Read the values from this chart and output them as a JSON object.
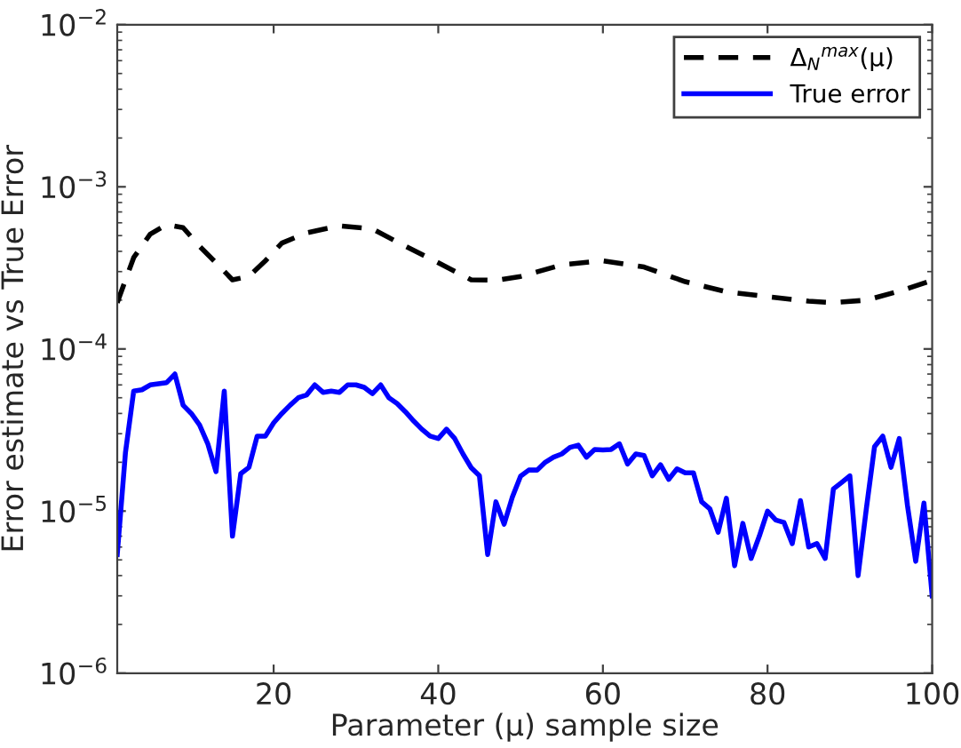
{
  "chart_data": {
    "type": "line",
    "xlabel": "Parameter (μ) sample size",
    "ylabel": "Error estimate vs True Error",
    "log": "y",
    "xlim": [
      1,
      100
    ],
    "xticks": [
      20,
      40,
      60,
      80,
      100
    ],
    "ylim": [
      1e-06,
      0.01
    ],
    "yticks": [
      {
        "value": 1e-06,
        "label": "10$^{−6}$"
      },
      {
        "value": 1e-05,
        "label": "10$^{−5}$"
      },
      {
        "value": 0.0001,
        "label": "10$^{−4}$"
      },
      {
        "value": 0.001,
        "label": "10$^{−3}$"
      },
      {
        "value": 0.01,
        "label": "10$^{−2}$"
      }
    ],
    "grid": false,
    "legend": "top right",
    "marker": "none",
    "series": [
      {
        "name": "Δ$_{N}$$^{max}$(μ)",
        "color": "#000000",
        "line_style": "dashed",
        "x": [
          1,
          3,
          5,
          7,
          9,
          11,
          13,
          15,
          17,
          19,
          21,
          24,
          28,
          32,
          36,
          40,
          44,
          47,
          50,
          55,
          60,
          65,
          70,
          75,
          80,
          85,
          88,
          92,
          96,
          100
        ],
        "values": [
          0.000193,
          0.000366,
          0.00051,
          0.000585,
          0.00056,
          0.00043,
          0.00034,
          0.000267,
          0.00028,
          0.00035,
          0.00045,
          0.00052,
          0.000575,
          0.00055,
          0.00043,
          0.00034,
          0.000267,
          0.000265,
          0.00028,
          0.00033,
          0.00035,
          0.00032,
          0.00026,
          0.000225,
          0.00021,
          0.000197,
          0.000193,
          0.0002,
          0.000227,
          0.000265
        ]
      },
      {
        "name": "True error",
        "color": "#0000ff",
        "line_style": "solid",
        "x": [
          1,
          2,
          3,
          4,
          5,
          6,
          7,
          8,
          9,
          10,
          11,
          12,
          13,
          14,
          15,
          16,
          17,
          18,
          19,
          20,
          21,
          22,
          23,
          24,
          25,
          26,
          27,
          28,
          29,
          30,
          31,
          32,
          33,
          34,
          35,
          36,
          37,
          38,
          39,
          40,
          41,
          42,
          43,
          44,
          45,
          46,
          47,
          48,
          49,
          50,
          51,
          52,
          53,
          54,
          55,
          56,
          57,
          58,
          59,
          60,
          61,
          62,
          63,
          64,
          65,
          66,
          67,
          68,
          69,
          70,
          71,
          72,
          73,
          74,
          75,
          76,
          77,
          78,
          79,
          80,
          81,
          82,
          83,
          84,
          85,
          86,
          87,
          88,
          89,
          90,
          91,
          92,
          93,
          94,
          95,
          96,
          97,
          98,
          99,
          100
        ],
        "values": [
          5.4e-06,
          2.3e-05,
          5.5e-05,
          5.6e-05,
          6e-05,
          6.1e-05,
          6.2e-05,
          7e-05,
          4.5e-05,
          4e-05,
          3.4e-05,
          2.6e-05,
          1.75e-05,
          5.5e-05,
          7e-06,
          1.7e-05,
          1.86e-05,
          2.9e-05,
          2.9e-05,
          3.5e-05,
          4e-05,
          4.5e-05,
          5e-05,
          5.2e-05,
          6e-05,
          5.4e-05,
          5.5e-05,
          5.4e-05,
          6e-05,
          6e-05,
          5.8e-05,
          5.3e-05,
          6e-05,
          5e-05,
          4.6e-05,
          4.1e-05,
          3.6e-05,
          3.2e-05,
          2.9e-05,
          2.8e-05,
          3.2e-05,
          2.8e-05,
          2.25e-05,
          1.85e-05,
          1.65e-05,
          5.4e-06,
          1.14e-05,
          8.3e-06,
          1.22e-05,
          1.64e-05,
          1.79e-05,
          1.79e-05,
          2e-05,
          2.15e-05,
          2.25e-05,
          2.47e-05,
          2.55e-05,
          2.15e-05,
          2.4e-05,
          2.38e-05,
          2.4e-05,
          2.6e-05,
          1.95e-05,
          2.25e-05,
          2.2e-05,
          1.65e-05,
          1.93e-05,
          1.57e-05,
          1.82e-05,
          1.72e-05,
          1.72e-05,
          1.14e-05,
          1.03e-05,
          7.4e-06,
          1.2e-05,
          4.6e-06,
          8.4e-06,
          5.1e-06,
          7e-06,
          1e-05,
          8.8e-06,
          8.5e-06,
          6.3e-06,
          1.16e-05,
          6e-06,
          6.3e-06,
          5.1e-06,
          1.37e-05,
          1.5e-05,
          1.65e-05,
          4e-06,
          1.03e-05,
          2.5e-05,
          2.9e-05,
          1.86e-05,
          2.8e-05,
          1.08e-05,
          4.9e-06,
          1.12e-05,
          3e-06
        ]
      }
    ]
  }
}
